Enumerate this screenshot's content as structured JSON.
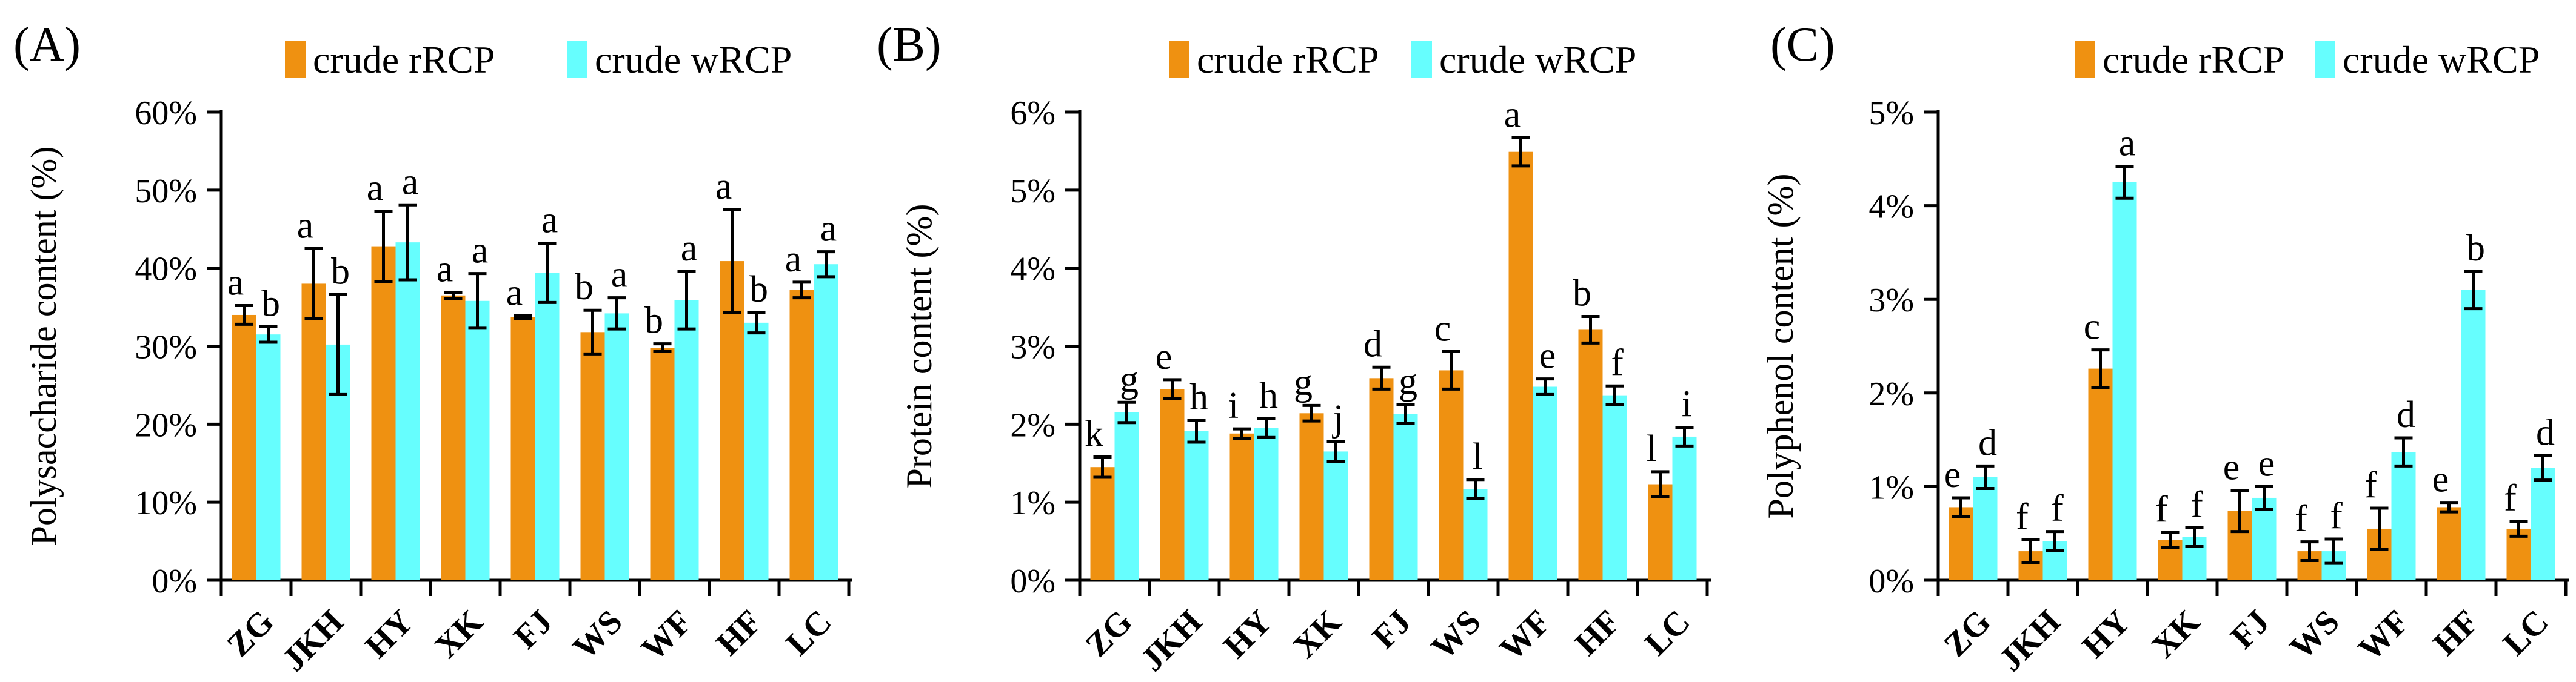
{
  "figure": {
    "background": "#ffffff",
    "series_colors": {
      "rRCP": "#EF9111",
      "wRCP": "#66FEFE"
    },
    "legend_labels": [
      "crude rRCP",
      "crude wRCP"
    ]
  },
  "chart_data": [
    {
      "type": "bar",
      "panel_label": "(A)",
      "ylabel": "Polysaccharide content (%)",
      "ymax": 60,
      "ystep": 10,
      "ytick_labels": [
        "0%",
        "10%",
        "20%",
        "30%",
        "40%",
        "50%",
        "60%"
      ],
      "grid": false,
      "legend_position": "top",
      "categories": [
        "ZG",
        "JKH",
        "HY",
        "XK",
        "FJ",
        "WS",
        "WF",
        "HF",
        "LC"
      ],
      "series": [
        {
          "name": "crude rRCP",
          "color": "#EF9111",
          "values": [
            34.0,
            38.0,
            42.8,
            36.5,
            33.7,
            31.8,
            29.8,
            40.9,
            37.2
          ],
          "errors": [
            1.2,
            4.5,
            4.5,
            0.4,
            0.2,
            2.8,
            0.5,
            6.6,
            1.0
          ],
          "letters": [
            "a",
            "a",
            "a",
            "a",
            "a",
            "b",
            "b",
            "a",
            "a"
          ]
        },
        {
          "name": "crude wRCP",
          "color": "#66FEFE",
          "values": [
            31.5,
            30.2,
            43.3,
            35.8,
            39.4,
            34.2,
            35.9,
            33.0,
            40.5
          ],
          "errors": [
            1.0,
            6.4,
            4.8,
            3.5,
            3.8,
            2.0,
            3.7,
            1.3,
            1.6
          ],
          "letters": [
            "b",
            "b",
            "a",
            "a",
            "a",
            "a",
            "a",
            "b",
            "a"
          ]
        }
      ]
    },
    {
      "type": "bar",
      "panel_label": "(B)",
      "ylabel": "Protein content (%)",
      "ymax": 6,
      "ystep": 1,
      "ytick_labels": [
        "0%",
        "1%",
        "2%",
        "3%",
        "4%",
        "5%",
        "6%"
      ],
      "grid": false,
      "legend_position": "top",
      "categories": [
        "ZG",
        "JKH",
        "HY",
        "XK",
        "FJ",
        "WS",
        "WF",
        "HF",
        "LC"
      ],
      "series": [
        {
          "name": "crude rRCP",
          "color": "#EF9111",
          "values": [
            1.45,
            2.45,
            1.88,
            2.14,
            2.59,
            2.69,
            5.49,
            3.21,
            1.23
          ],
          "errors": [
            0.13,
            0.12,
            0.06,
            0.1,
            0.14,
            0.24,
            0.18,
            0.17,
            0.16
          ],
          "letters": [
            "k",
            "e",
            "i",
            "g",
            "d",
            "c",
            "a",
            "b",
            "l"
          ]
        },
        {
          "name": "crude wRCP",
          "color": "#66FEFE",
          "values": [
            2.15,
            1.91,
            1.95,
            1.65,
            2.13,
            1.17,
            2.48,
            2.37,
            1.84
          ],
          "errors": [
            0.13,
            0.14,
            0.12,
            0.13,
            0.12,
            0.12,
            0.1,
            0.12,
            0.12
          ],
          "letters": [
            "g",
            "h",
            "h",
            "j",
            "g",
            "l",
            "e",
            "f",
            "i"
          ]
        }
      ]
    },
    {
      "type": "bar",
      "panel_label": "(C)",
      "ylabel": "Polyphenol content (%)",
      "ymax": 5,
      "ystep": 1,
      "ytick_labels": [
        "0%",
        "1%",
        "2%",
        "3%",
        "4%",
        "5%"
      ],
      "grid": false,
      "legend_position": "top",
      "categories": [
        "ZG",
        "JKH",
        "HY",
        "XK",
        "FJ",
        "WS",
        "WF",
        "HF",
        "LC"
      ],
      "series": [
        {
          "name": "crude rRCP",
          "color": "#EF9111",
          "values": [
            0.78,
            0.31,
            2.26,
            0.43,
            0.74,
            0.31,
            0.55,
            0.78,
            0.55
          ],
          "errors": [
            0.1,
            0.12,
            0.2,
            0.08,
            0.22,
            0.1,
            0.22,
            0.05,
            0.08
          ],
          "letters": [
            "e",
            "f",
            "c",
            "f",
            "e",
            "f",
            "f",
            "e",
            "f"
          ]
        },
        {
          "name": "crude wRCP",
          "color": "#66FEFE",
          "values": [
            1.1,
            0.42,
            4.25,
            0.46,
            0.88,
            0.31,
            1.37,
            3.1,
            1.2
          ],
          "errors": [
            0.12,
            0.1,
            0.17,
            0.1,
            0.12,
            0.13,
            0.15,
            0.2,
            0.13
          ],
          "letters": [
            "d",
            "f",
            "a",
            "f",
            "e",
            "f",
            "d",
            "b",
            "d"
          ]
        }
      ]
    }
  ]
}
